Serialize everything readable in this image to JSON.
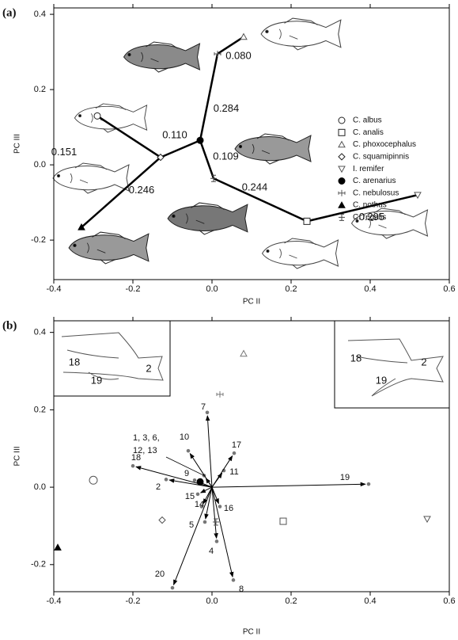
{
  "chart_data": [
    {
      "type": "tree-scatter",
      "panel_label": "(a)",
      "xlabel": "PC II",
      "ylabel": "PC III",
      "xlim": [
        -0.4,
        0.6
      ],
      "ylim": [
        -0.305,
        0.417
      ],
      "xticks": [
        -0.4,
        -0.2,
        {
          "value": 0,
          "label": "0.0"
        },
        0.2,
        0.4,
        0.6
      ],
      "yticks": [
        -0.2,
        {
          "value": 0,
          "label": "0.0"
        },
        0.2,
        0.4
      ],
      "legend": true,
      "series": [
        {
          "name": "C. albus",
          "marker": "circle",
          "color": "#222",
          "x": [
            -0.29
          ],
          "values": [
            0.13
          ]
        },
        {
          "name": "C. analis",
          "marker": "square",
          "color": "#222",
          "x": [
            0.24
          ],
          "values": [
            -0.15
          ]
        },
        {
          "name": "C. phoxocephalus",
          "marker": "triangle",
          "color": "#555",
          "x": [
            0.08
          ],
          "values": [
            0.34
          ]
        },
        {
          "name": "C. squamipinnis",
          "marker": "diamond",
          "color": "#222",
          "x": [
            -0.13
          ],
          "values": [
            0.02
          ]
        },
        {
          "name": "I. remifer",
          "marker": "triangle-down",
          "color": "#555",
          "x": [
            0.52
          ],
          "values": [
            -0.08
          ]
        },
        {
          "name": "C. arenarius",
          "marker": "dot",
          "color": "#000",
          "x": [
            -0.03
          ],
          "values": [
            0.065
          ]
        },
        {
          "name": "C. nebulosus",
          "marker": "plus",
          "color": "#555",
          "x": [
            0.014
          ],
          "values": [
            0.295
          ]
        },
        {
          "name": "C. nothus",
          "marker": "filled-triangle",
          "color": "#000",
          "x": [
            -0.33
          ],
          "values": [
            -0.166
          ]
        },
        {
          "name": "C. regalis",
          "marker": "ibeam",
          "color": "#444",
          "x": [
            0.004
          ],
          "values": [
            -0.036
          ]
        }
      ],
      "edges": {
        "from": [
          6,
          6,
          5,
          3,
          3,
          5,
          8,
          1
        ],
        "to": [
          2,
          5,
          3,
          0,
          7,
          8,
          1,
          4
        ],
        "values": [
          0.08,
          0.284,
          0.11,
          0.151,
          0.246,
          0.109,
          0.244,
          0.295
        ],
        "value_labels": [
          "0.080",
          "0.284",
          "0.110",
          "0.151",
          "0.246",
          "0.109",
          "0.244",
          "0.295"
        ]
      }
    },
    {
      "type": "biplot",
      "panel_label": "(b)",
      "xlabel": "PC II",
      "ylabel": "PC III",
      "xlim": [
        -0.4,
        0.6
      ],
      "ylim": [
        -0.27,
        0.43
      ],
      "xticks": [
        -0.4,
        -0.2,
        {
          "value": 0,
          "label": "0.0"
        },
        0.2,
        0.4,
        0.6
      ],
      "yticks": [
        -0.2,
        {
          "value": 0,
          "label": "0.0"
        },
        0.2,
        0.4
      ],
      "series": [
        {
          "marker": "circle",
          "color": "#555",
          "x": [
            -0.3
          ],
          "values": [
            0.018
          ]
        },
        {
          "marker": "square",
          "color": "#555",
          "x": [
            0.18
          ],
          "values": [
            -0.088
          ]
        },
        {
          "marker": "triangle",
          "color": "#777",
          "x": [
            0.08
          ],
          "values": [
            0.345
          ]
        },
        {
          "marker": "diamond",
          "color": "#555",
          "x": [
            -0.126
          ],
          "values": [
            -0.085
          ]
        },
        {
          "marker": "triangle-down",
          "color": "#555",
          "x": [
            0.544
          ],
          "values": [
            -0.082
          ]
        },
        {
          "marker": "dot",
          "color": "#000",
          "x": [
            -0.03
          ],
          "values": [
            0.014
          ]
        },
        {
          "marker": "plus",
          "color": "#777",
          "x": [
            0.02
          ],
          "values": [
            0.24
          ]
        },
        {
          "marker": "filled-triangle",
          "color": "#000",
          "x": [
            -0.39
          ],
          "values": [
            -0.156
          ]
        },
        {
          "marker": "ibeam",
          "color": "#555",
          "x": [
            0.01
          ],
          "values": [
            -0.09
          ]
        }
      ],
      "vectors": {
        "labels": [
          [
            "1, 3, 6,",
            "12, 13"
          ],
          "2",
          "4",
          "5",
          "7",
          "8",
          "9",
          "10",
          "11",
          "14",
          "15",
          "16",
          "17",
          "18",
          "19",
          "20"
        ],
        "x": [
          -0.02,
          -0.116,
          0.012,
          -0.018,
          -0.012,
          0.054,
          -0.044,
          -0.06,
          0.03,
          -0.026,
          -0.036,
          0.02,
          0.056,
          -0.2,
          0.396,
          -0.1
        ],
        "values": [
          0.03,
          0.02,
          -0.14,
          -0.09,
          0.193,
          -0.24,
          0.018,
          0.094,
          0.043,
          -0.05,
          -0.018,
          -0.05,
          0.088,
          0.055,
          0.008,
          -0.26
        ]
      },
      "insets": [
        {
          "labels": [
            "18",
            "19",
            "2"
          ]
        },
        {
          "labels": [
            "18",
            "19",
            "2"
          ]
        }
      ]
    }
  ]
}
